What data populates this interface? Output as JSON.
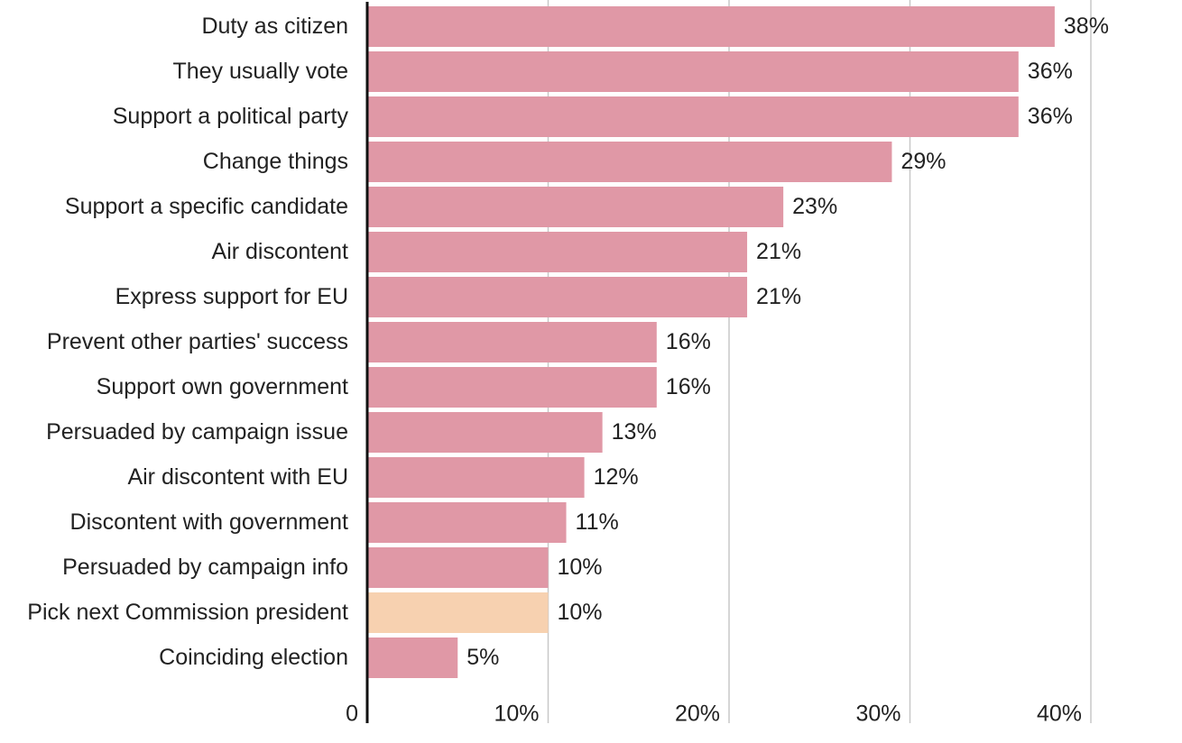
{
  "chart_data": {
    "type": "bar",
    "orientation": "horizontal",
    "title": "",
    "xlabel": "",
    "ylabel": "",
    "xlim": [
      0,
      40
    ],
    "grid": true,
    "categories": [
      "Duty as citizen",
      "They usually vote",
      "Support a political party",
      "Change things",
      "Support a specific candidate",
      "Air discontent",
      "Express support for EU",
      "Prevent other parties' success",
      "Support own government",
      "Persuaded by campaign issue",
      "Air discontent with EU",
      "Discontent with government",
      "Persuaded by campaign info",
      "Pick next Commission president",
      "Coinciding election"
    ],
    "values": [
      38,
      36,
      36,
      29,
      23,
      21,
      21,
      16,
      16,
      13,
      12,
      11,
      10,
      10,
      5
    ],
    "value_labels": [
      "38%",
      "36%",
      "36%",
      "29%",
      "23%",
      "21%",
      "21%",
      "16%",
      "16%",
      "13%",
      "12%",
      "11%",
      "10%",
      "10%",
      "5%"
    ],
    "highlight_index": 13,
    "ticks": [
      0,
      10,
      20,
      30,
      40
    ],
    "tick_labels": [
      "0",
      "10%",
      "20%",
      "30%",
      "40%"
    ],
    "colors": {
      "bar": "#e098a6",
      "highlight": "#f7d1b0",
      "grid": "#c8c8c8",
      "axis": "#111111",
      "text": "#222222"
    }
  }
}
